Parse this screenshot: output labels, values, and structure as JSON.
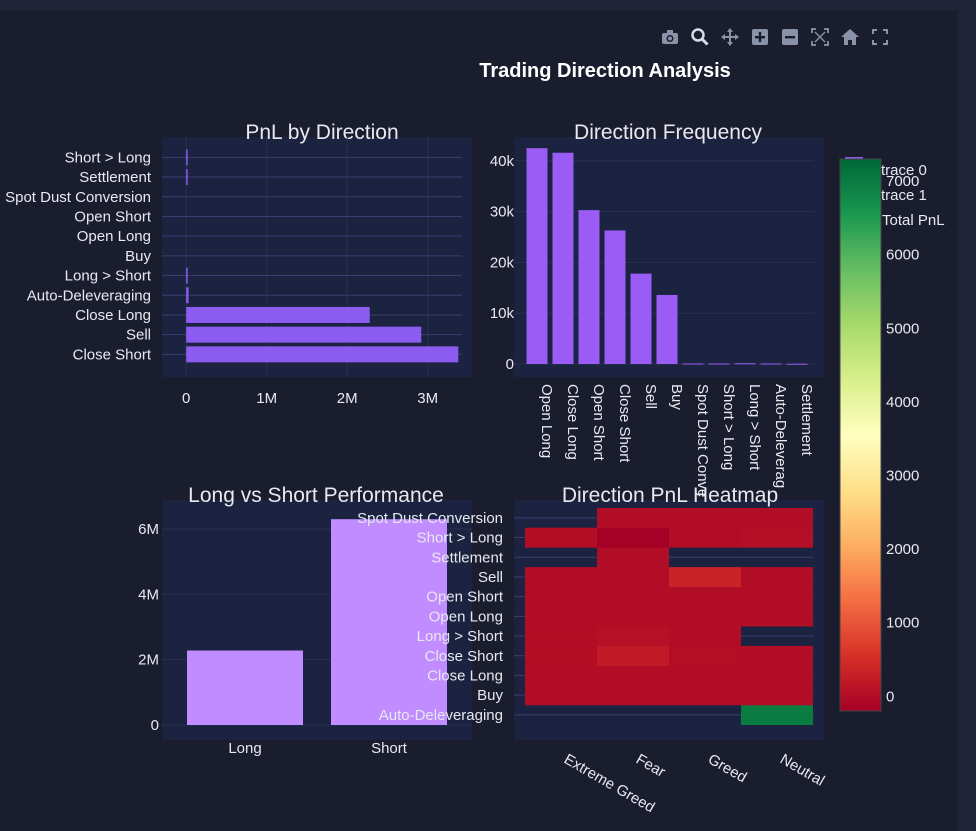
{
  "title": "Trading Direction Analysis",
  "modebar": [
    {
      "name": "camera-icon"
    },
    {
      "name": "zoom-icon"
    },
    {
      "name": "pan-icon"
    },
    {
      "name": "zoom-in-icon"
    },
    {
      "name": "zoom-out-icon"
    },
    {
      "name": "autoscale-icon"
    },
    {
      "name": "home-icon"
    },
    {
      "name": "fullscreen-icon"
    }
  ],
  "colors": {
    "bar": "#8c5cf0",
    "bar_freq": "#9b5cf5",
    "bar_long_short": "#c08cff",
    "plot_bg": "#1b2340",
    "grid": "#2a3150",
    "text": "#e8e8f0"
  },
  "legend": [
    "trace 0",
    "trace 1"
  ],
  "chart_data": [
    {
      "type": "bar",
      "orientation": "h",
      "title": "PnL by Direction",
      "categories": [
        "Close Short",
        "Sell",
        "Close Long",
        "Auto-Deleveraging",
        "Long > Short",
        "Buy",
        "Open Long",
        "Open Short",
        "Spot Dust Conversion",
        "Settlement",
        "Short > Long"
      ],
      "values": [
        3380000,
        2920000,
        2280000,
        30000,
        5000,
        0,
        0,
        0,
        0,
        2000,
        3000
      ],
      "xticks": [
        0,
        1000000,
        2000000,
        3000000
      ],
      "xtick_labels": [
        "0",
        "1M",
        "2M",
        "3M"
      ],
      "xlim": [
        -300000,
        3550000
      ]
    },
    {
      "type": "bar",
      "title": "Direction Frequency",
      "categories": [
        "Open Long",
        "Close Long",
        "Open Short",
        "Close Short",
        "Sell",
        "Buy",
        "Spot Dust Conversion",
        "Short > Long",
        "Long > Short",
        "Auto-Deleveraging",
        "Settlement"
      ],
      "category_labels": [
        "Open Long",
        "Close Long",
        "Open Short",
        "Close Short",
        "Sell",
        "Buy",
        "Spot Dust Conve",
        "Short > Long",
        "Long > Short",
        "Auto-Deleverag",
        "Settlement"
      ],
      "values": [
        42500,
        41600,
        30300,
        26300,
        17800,
        13600,
        100,
        100,
        150,
        100,
        50
      ],
      "yticks": [
        0,
        10000,
        20000,
        30000,
        40000
      ],
      "ytick_labels": [
        "0",
        "10k",
        "20k",
        "30k",
        "40k"
      ],
      "ylim": [
        0,
        44700
      ]
    },
    {
      "type": "bar",
      "title": "Long vs Short Performance",
      "categories": [
        "Long",
        "Short"
      ],
      "values": [
        2280000,
        6300000
      ],
      "yticks": [
        0,
        2000000,
        4000000,
        6000000
      ],
      "ytick_labels": [
        "0",
        "2M",
        "4M",
        "6M"
      ],
      "ylim": [
        0,
        6700000
      ]
    },
    {
      "type": "heatmap",
      "title": "Direction PnL Heatmap",
      "x": [
        "Extreme Greed",
        "Fear",
        "Greed",
        "Neutral"
      ],
      "y": [
        "Auto-Deleveraging",
        "Buy",
        "Close Long",
        "Close Short",
        "Long > Short",
        "Open Long",
        "Open Short",
        "Sell",
        "Settlement",
        "Short > Long",
        "Spot Dust Conversion"
      ],
      "z": [
        [
          null,
          null,
          null,
          7000
        ],
        [
          0,
          0,
          0,
          0
        ],
        [
          0,
          0,
          0,
          0
        ],
        [
          5,
          200,
          15,
          0
        ],
        [
          5,
          50,
          0,
          null
        ],
        [
          0,
          0,
          0,
          0
        ],
        [
          0,
          0,
          0,
          0
        ],
        [
          0,
          0,
          350,
          0
        ],
        [
          null,
          0,
          null,
          null
        ],
        [
          3,
          -200,
          0,
          30
        ],
        [
          null,
          0,
          0,
          0
        ]
      ],
      "colorbar": {
        "title": "Total PnL",
        "ticks": [
          0,
          1000,
          2000,
          3000,
          4000,
          5000,
          6000,
          7000
        ],
        "tick_labels": [
          "0",
          "1000",
          "2000",
          "3000",
          "4000",
          "5000",
          "6000",
          "7000"
        ],
        "range": [
          -200,
          7300
        ],
        "colorscale": "RdYlGn"
      }
    }
  ]
}
